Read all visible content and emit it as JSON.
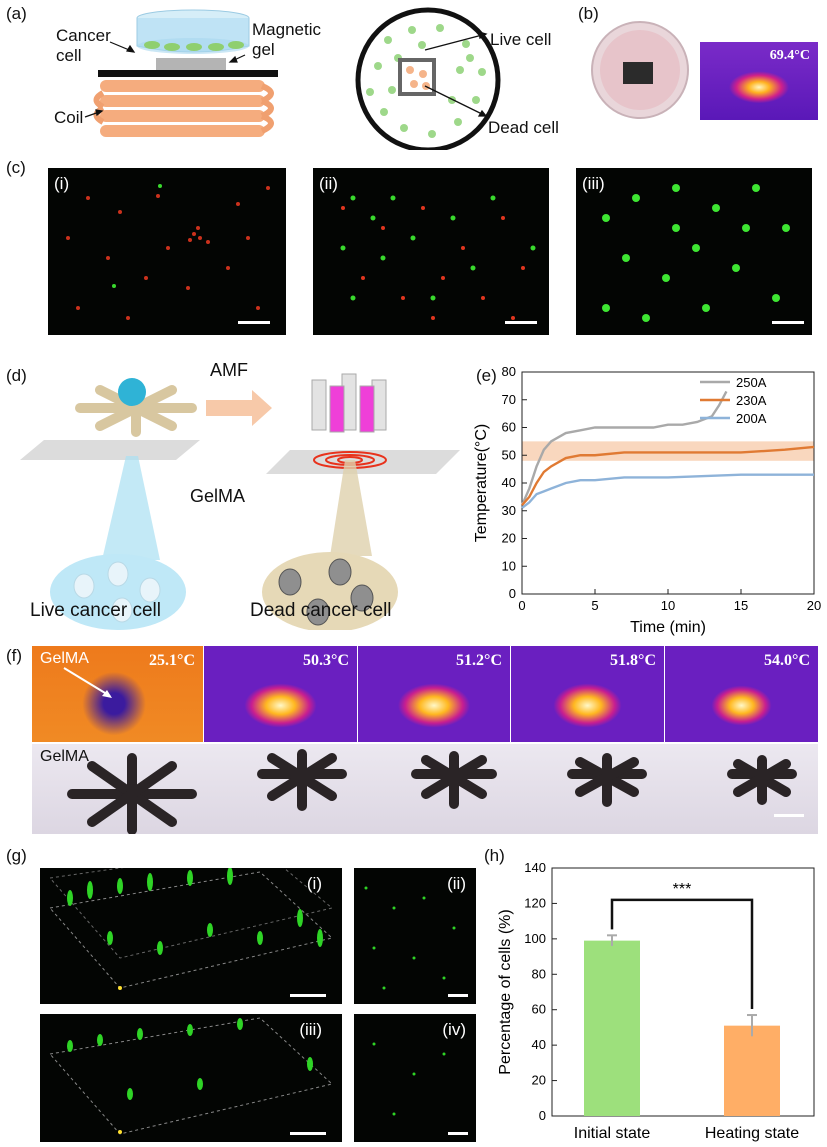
{
  "panel_labels": {
    "a": "(a)",
    "b": "(b)",
    "c": "(c)",
    "d": "(d)",
    "e": "(e)",
    "f": "(f)",
    "g": "(g)",
    "h": "(h)"
  },
  "panel_a": {
    "cancer_cell": "Cancer\ncell",
    "magnetic_gel": "Magnetic\ngel",
    "coil": "Coil",
    "live_cell": "Live cell",
    "dead_cell": "Dead cell"
  },
  "panel_b": {
    "temperature": "69.4°C"
  },
  "panel_c": {
    "tags": [
      "(i)",
      "(ii)",
      "(iii)"
    ]
  },
  "panel_d": {
    "amf": "AMF",
    "gelma": "GelMA",
    "live": "Live cancer cell",
    "dead": "Dead cancer cell"
  },
  "panel_f": {
    "temperatures": [
      "25.1°C",
      "50.3°C",
      "51.2°C",
      "51.8°C",
      "54.0°C"
    ],
    "gelma_top": "GelMA",
    "gelma_bottom": "GelMA"
  },
  "panel_g": {
    "tags": [
      "(i)",
      "(ii)",
      "(iii)",
      "(iv)"
    ]
  },
  "chart_data": [
    {
      "type": "line",
      "panel": "e",
      "xlabel": "Time (min)",
      "ylabel": "Temperature(°C)",
      "xlim": [
        0,
        20
      ],
      "ylim": [
        0,
        80
      ],
      "xticks": [
        0,
        5,
        10,
        15,
        20
      ],
      "yticks": [
        0,
        10,
        20,
        30,
        40,
        50,
        60,
        70,
        80
      ],
      "legend_position": "top-right",
      "band": [
        48,
        55
      ],
      "series": [
        {
          "name": "250A",
          "color": "#a9a9a9",
          "x": [
            0,
            0.5,
            1,
            1.5,
            2,
            3,
            4,
            5,
            6,
            7,
            8,
            9,
            10,
            11,
            12,
            12.5,
            13,
            13.5,
            14
          ],
          "y": [
            32,
            38,
            46,
            52,
            55,
            58,
            59,
            60,
            60,
            60,
            60,
            60,
            61,
            61,
            62,
            63,
            64,
            68,
            73
          ]
        },
        {
          "name": "230A",
          "color": "#e07a33",
          "x": [
            0,
            0.5,
            1,
            1.5,
            2,
            3,
            4,
            5,
            7,
            10,
            12,
            15,
            18,
            20
          ],
          "y": [
            32,
            35,
            40,
            44,
            46,
            49,
            50,
            50,
            51,
            51,
            51,
            51,
            52,
            53
          ]
        },
        {
          "name": "200A",
          "color": "#8eb3d9",
          "x": [
            0,
            0.5,
            1,
            1.5,
            2,
            3,
            4,
            5,
            7,
            10,
            15,
            20
          ],
          "y": [
            31,
            33,
            36,
            37,
            38,
            40,
            41,
            41,
            42,
            42,
            43,
            43
          ]
        }
      ]
    },
    {
      "type": "bar",
      "panel": "h",
      "categories": [
        "Initial state",
        "Heating state"
      ],
      "values": [
        99,
        51
      ],
      "errors": [
        3,
        6
      ],
      "colors": [
        "#9de07c",
        "#ffae66"
      ],
      "ylabel": "Percentage of cells (%)",
      "ylim": [
        0,
        140
      ],
      "yticks": [
        0,
        20,
        40,
        60,
        80,
        100,
        120,
        140
      ],
      "significance": "***"
    }
  ]
}
